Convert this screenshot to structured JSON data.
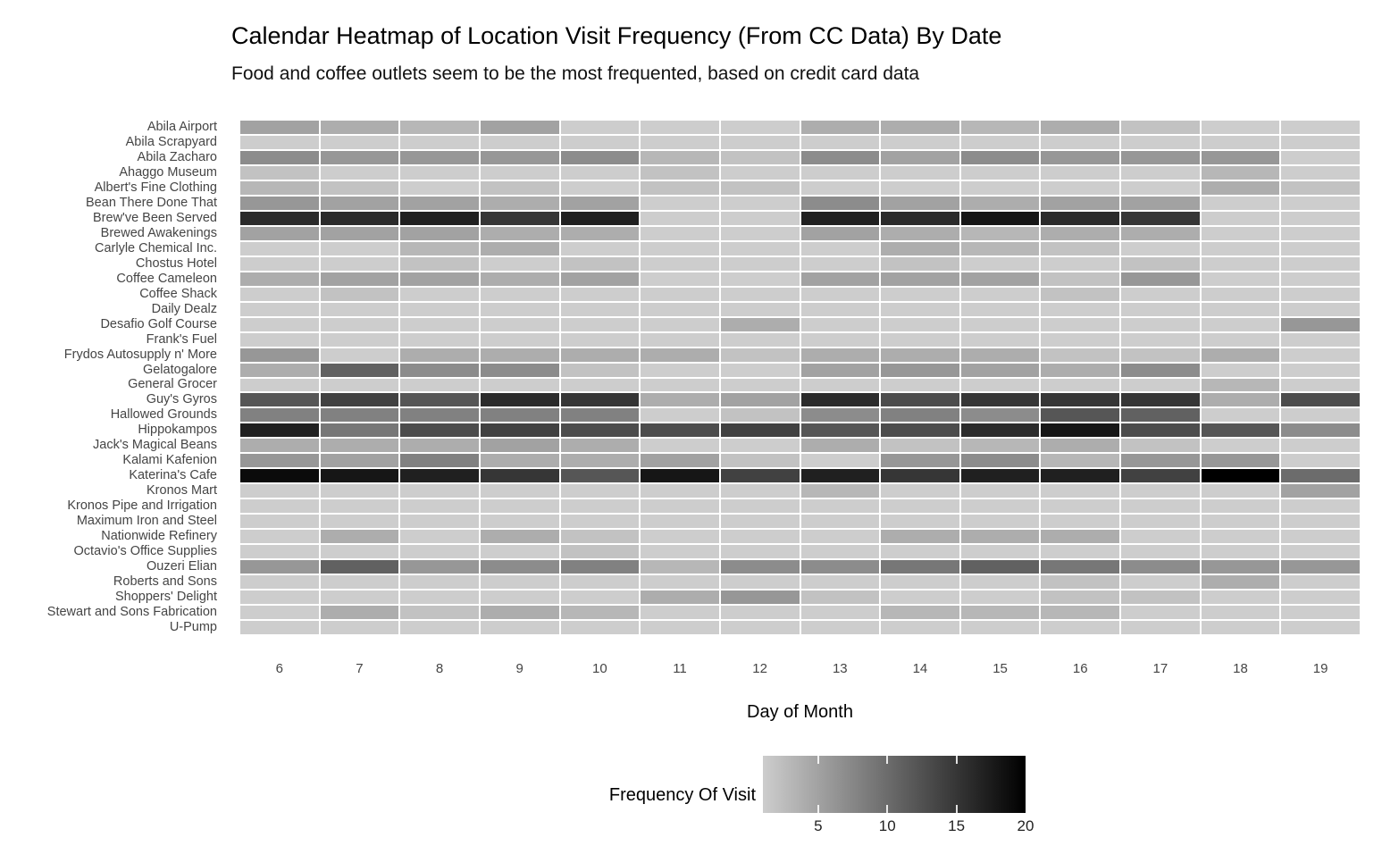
{
  "chart_data": {
    "type": "heatmap",
    "title": "Calendar Heatmap of Location Visit Frequency (From CC Data) By Date",
    "subtitle": "Food and coffee outlets seem to be the most frequented, based on credit card data",
    "xlabel": "Day of Month",
    "x": [
      6,
      7,
      8,
      9,
      10,
      11,
      12,
      13,
      14,
      15,
      16,
      17,
      18,
      19
    ],
    "rows": [
      "Abila Airport",
      "Abila Scrapyard",
      "Abila Zacharo",
      "Ahaggo Museum",
      "Albert's Fine Clothing",
      "Bean There Done That",
      "Brew've Been Served",
      "Brewed Awakenings",
      "Carlyle Chemical Inc.",
      "Chostus Hotel",
      "Coffee Cameleon",
      "Coffee Shack",
      "Daily Dealz",
      "Desafio Golf Course",
      "Frank's Fuel",
      "Frydos Autosupply n' More",
      "Gelatogalore",
      "General Grocer",
      "Guy's Gyros",
      "Hallowed Grounds",
      "Hippokampos",
      "Jack's Magical Beans",
      "Kalami Kafenion",
      "Katerina's Cafe",
      "Kronos Mart",
      "Kronos Pipe and Irrigation",
      "Maximum Iron and Steel",
      "Nationwide Refinery",
      "Octavio's Office Supplies",
      "Ouzeri Elian",
      "Roberts and Sons",
      "Shoppers' Delight",
      "Stewart and Sons Fabrication",
      "U-Pump"
    ],
    "values": [
      [
        5,
        4,
        3,
        5,
        1,
        1,
        1,
        4,
        4,
        3,
        4,
        2,
        1,
        1
      ],
      [
        1,
        1,
        1,
        1,
        1,
        1,
        1,
        1,
        1,
        1,
        1,
        1,
        1,
        1
      ],
      [
        7,
        6,
        6,
        6,
        7,
        3,
        2,
        7,
        5,
        7,
        6,
        6,
        6,
        1
      ],
      [
        2,
        1,
        1,
        1,
        1,
        2,
        1,
        1,
        1,
        1,
        1,
        1,
        3,
        1
      ],
      [
        3,
        2,
        1,
        2,
        1,
        2,
        2,
        1,
        1,
        1,
        1,
        1,
        4,
        2
      ],
      [
        6,
        5,
        5,
        4,
        5,
        1,
        1,
        7,
        5,
        4,
        5,
        5,
        1,
        1
      ],
      [
        16,
        16,
        17,
        15,
        17,
        1,
        1,
        17,
        16,
        18,
        16,
        15,
        1,
        1
      ],
      [
        5,
        5,
        5,
        4,
        4,
        1,
        1,
        5,
        4,
        3,
        4,
        4,
        1,
        1
      ],
      [
        1,
        1,
        3,
        4,
        1,
        1,
        1,
        1,
        4,
        3,
        2,
        1,
        1,
        1
      ],
      [
        1,
        1,
        2,
        1,
        2,
        1,
        1,
        1,
        2,
        1,
        1,
        2,
        1,
        1
      ],
      [
        4,
        5,
        5,
        4,
        5,
        1,
        1,
        5,
        5,
        5,
        2,
        6,
        1,
        1
      ],
      [
        1,
        2,
        1,
        1,
        1,
        1,
        1,
        1,
        1,
        1,
        2,
        1,
        1,
        1
      ],
      [
        1,
        1,
        1,
        1,
        1,
        1,
        1,
        1,
        1,
        1,
        1,
        1,
        1,
        1
      ],
      [
        1,
        1,
        1,
        1,
        1,
        1,
        4,
        1,
        1,
        1,
        1,
        1,
        1,
        6
      ],
      [
        1,
        1,
        1,
        1,
        1,
        1,
        1,
        1,
        1,
        1,
        1,
        1,
        1,
        1
      ],
      [
        6,
        1,
        4,
        4,
        4,
        4,
        2,
        4,
        4,
        4,
        2,
        2,
        4,
        1
      ],
      [
        4,
        11,
        7,
        7,
        2,
        1,
        1,
        5,
        6,
        5,
        4,
        7,
        1,
        1
      ],
      [
        1,
        1,
        1,
        1,
        1,
        1,
        1,
        1,
        1,
        1,
        1,
        1,
        3,
        1
      ],
      [
        12,
        14,
        12,
        16,
        15,
        4,
        5,
        16,
        13,
        15,
        15,
        15,
        4,
        13
      ],
      [
        8,
        8,
        8,
        8,
        8,
        1,
        2,
        7,
        8,
        7,
        12,
        11,
        1,
        1
      ],
      [
        17,
        9,
        13,
        14,
        13,
        13,
        14,
        12,
        13,
        16,
        18,
        13,
        12,
        7
      ],
      [
        4,
        4,
        4,
        5,
        4,
        1,
        1,
        4,
        2,
        3,
        4,
        2,
        1,
        1
      ],
      [
        6,
        5,
        8,
        4,
        4,
        5,
        2,
        1,
        6,
        7,
        3,
        6,
        6,
        1
      ],
      [
        19,
        18,
        17,
        15,
        12,
        18,
        14,
        17,
        15,
        17,
        17,
        14,
        20,
        10
      ],
      [
        1,
        1,
        1,
        1,
        1,
        1,
        1,
        3,
        1,
        1,
        1,
        1,
        1,
        5
      ],
      [
        1,
        1,
        1,
        1,
        1,
        1,
        1,
        1,
        1,
        1,
        1,
        1,
        1,
        1
      ],
      [
        1,
        1,
        1,
        1,
        1,
        1,
        1,
        1,
        1,
        1,
        1,
        1,
        1,
        1
      ],
      [
        1,
        4,
        1,
        4,
        2,
        1,
        1,
        1,
        4,
        4,
        4,
        1,
        1,
        1
      ],
      [
        1,
        1,
        1,
        1,
        2,
        1,
        1,
        1,
        1,
        1,
        1,
        1,
        1,
        1
      ],
      [
        6,
        11,
        6,
        7,
        8,
        3,
        7,
        7,
        9,
        11,
        9,
        7,
        6,
        6
      ],
      [
        1,
        1,
        1,
        1,
        1,
        1,
        1,
        1,
        1,
        1,
        2,
        1,
        4,
        1
      ],
      [
        1,
        1,
        1,
        1,
        1,
        4,
        6,
        2,
        1,
        1,
        2,
        2,
        1,
        1
      ],
      [
        1,
        4,
        2,
        4,
        3,
        1,
        1,
        1,
        3,
        3,
        3,
        1,
        1,
        1
      ],
      [
        1,
        1,
        1,
        1,
        1,
        1,
        1,
        1,
        1,
        1,
        1,
        1,
        1,
        1
      ]
    ],
    "legend": {
      "label": "Frequency Of Visit",
      "ticks": [
        5,
        10,
        15,
        20
      ],
      "min": 1,
      "max": 20,
      "low_color": "#cdcdcd",
      "high_color": "#000000",
      "position": "bottom"
    },
    "grid": false,
    "cell_border_color": "#ffffff",
    "axis_text_color": "#454545"
  }
}
